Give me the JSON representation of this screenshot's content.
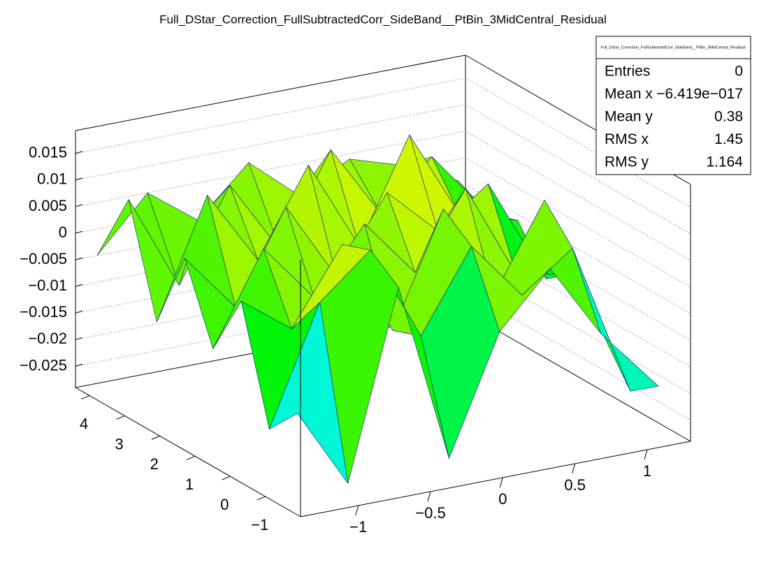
{
  "chart_data": {
    "type": "surface",
    "title": "Full_DStar_Correction_FullSubtractedCorr_SideBand__PtBin_3MidCentral_Residual",
    "x": [
      -1.3,
      -0.95,
      -0.6,
      -0.25,
      0.1,
      0.45,
      0.8,
      1.2
    ],
    "y": [
      -1.5,
      -0.7,
      0.1,
      0.9,
      1.7,
      2.5,
      3.3,
      4.2
    ],
    "z": [
      [
        -0.012,
        -0.027,
        0.008,
        -0.026,
        -0.004,
        0.006,
        -0.008,
        -0.02
      ],
      [
        -0.018,
        0.004,
        0.012,
        -0.006,
        0.009,
        -0.002,
        0.005,
        -0.024
      ],
      [
        0.003,
        -0.004,
        0.01,
        -0.008,
        0.013,
        -0.005,
        0.011,
        -0.016
      ],
      [
        -0.009,
        0.008,
        -0.003,
        0.009,
        -0.002,
        0.012,
        -0.006,
        -0.008
      ],
      [
        0.005,
        -0.006,
        0.011,
        -0.004,
        0.01,
        0.001,
        0.008,
        -0.012
      ],
      [
        -0.01,
        0.012,
        -0.002,
        0.014,
        -0.003,
        0.016,
        -0.001,
        -0.004
      ],
      [
        0.01,
        -0.008,
        0.009,
        -0.005,
        0.012,
        -0.002,
        0.007,
        -0.006
      ],
      [
        -0.004,
        0.006,
        -0.001,
        0.008,
        0.0,
        0.005,
        0.002,
        -0.003
      ]
    ],
    "xlim": [
      -1.4,
      1.3
    ],
    "ylim": [
      -2,
      4.4
    ],
    "zlim": [
      -0.029,
      0.0193
    ],
    "xticks": [
      {
        "value": -1,
        "label": "−1"
      },
      {
        "value": -0.5,
        "label": "−0.5"
      },
      0,
      0.5,
      1
    ],
    "yticks": [
      {
        "value": -1,
        "label": "−1"
      },
      0,
      1,
      2,
      3,
      4
    ],
    "zticks": [
      {
        "value": -0.025,
        "label": "−0.025"
      },
      {
        "value": -0.02,
        "label": "−0.02"
      },
      {
        "value": -0.015,
        "label": "−0.015"
      },
      {
        "value": -0.01,
        "label": "−0.01"
      },
      {
        "value": -0.005,
        "label": "−0.005"
      },
      0,
      0.005,
      0.01,
      0.015
    ],
    "grid": true,
    "stats": {
      "title": "Full_DStar_Correction_FullSubtractedCorr_SideBand__PtBin_3MidCentral_Residual",
      "rows": [
        [
          "Entries",
          "0"
        ],
        [
          "Mean x",
          "−6.419e−017"
        ],
        [
          "Mean y",
          "0.38"
        ],
        [
          "RMS x",
          "1.45"
        ],
        [
          "RMS y",
          "1.164"
        ]
      ]
    }
  }
}
